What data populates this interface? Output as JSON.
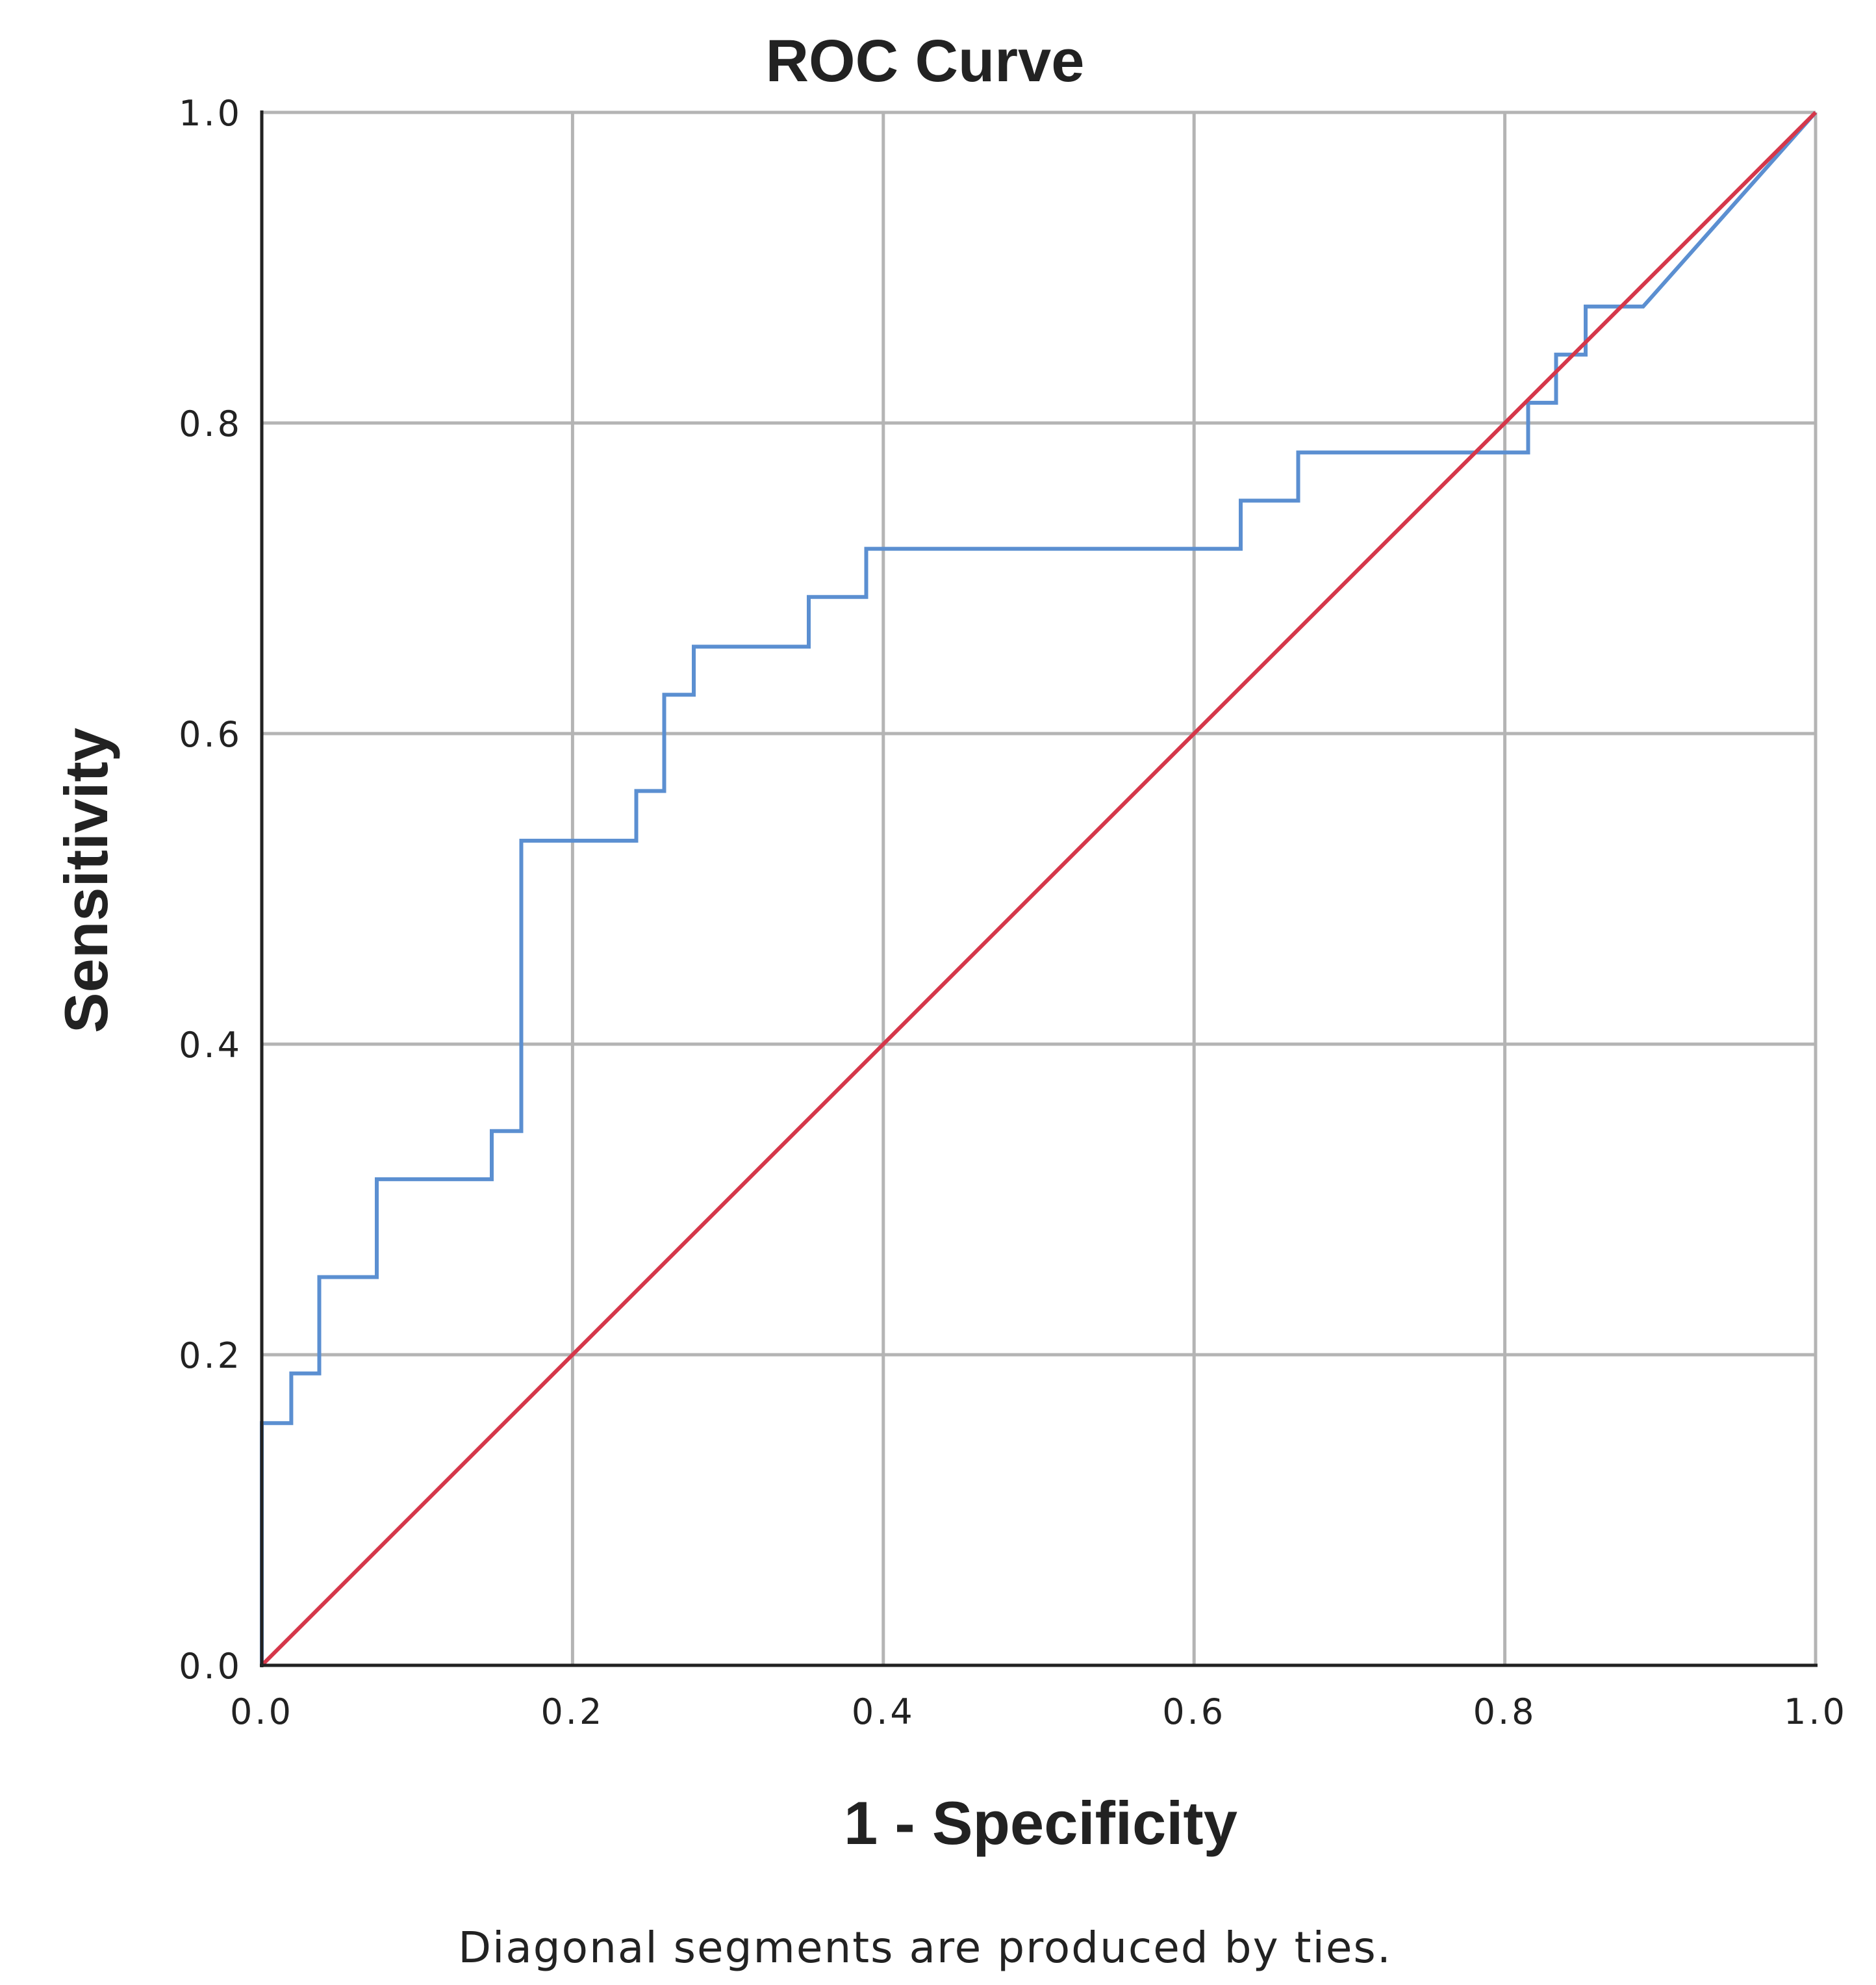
{
  "chart_data": {
    "type": "line",
    "title": "ROC Curve",
    "xlabel": "1 - Specificity",
    "ylabel": "Sensitivity",
    "footnote": "Diagonal segments are produced by ties.",
    "xlim": [
      0,
      1
    ],
    "ylim": [
      0,
      1
    ],
    "xticks": [
      "0.0",
      "0.2",
      "0.4",
      "0.6",
      "0.8",
      "1.0"
    ],
    "yticks": [
      "0.0",
      "0.2",
      "0.4",
      "0.6",
      "0.8",
      "1.0"
    ],
    "grid": true,
    "series": [
      {
        "color": "#5b8fd1",
        "x": [
          0.0,
          0.0,
          0.019,
          0.019,
          0.037,
          0.037,
          0.074,
          0.074,
          0.148,
          0.148,
          0.167,
          0.167,
          0.241,
          0.241,
          0.259,
          0.259,
          0.278,
          0.278,
          0.352,
          0.352,
          0.389,
          0.389,
          0.63,
          0.63,
          0.667,
          0.667,
          0.815,
          0.815,
          0.833,
          0.833,
          0.852,
          0.852,
          0.889,
          1.0
        ],
        "y": [
          0.0,
          0.156,
          0.156,
          0.188,
          0.188,
          0.25,
          0.25,
          0.313,
          0.313,
          0.344,
          0.344,
          0.531,
          0.531,
          0.563,
          0.563,
          0.625,
          0.625,
          0.656,
          0.656,
          0.688,
          0.688,
          0.719,
          0.719,
          0.75,
          0.75,
          0.781,
          0.781,
          0.813,
          0.813,
          0.844,
          0.844,
          0.875,
          0.875,
          1.0
        ]
      },
      {
        "color": "#d5374a",
        "x": [
          0.0,
          1.0
        ],
        "y": [
          0.0,
          1.0
        ]
      }
    ]
  }
}
